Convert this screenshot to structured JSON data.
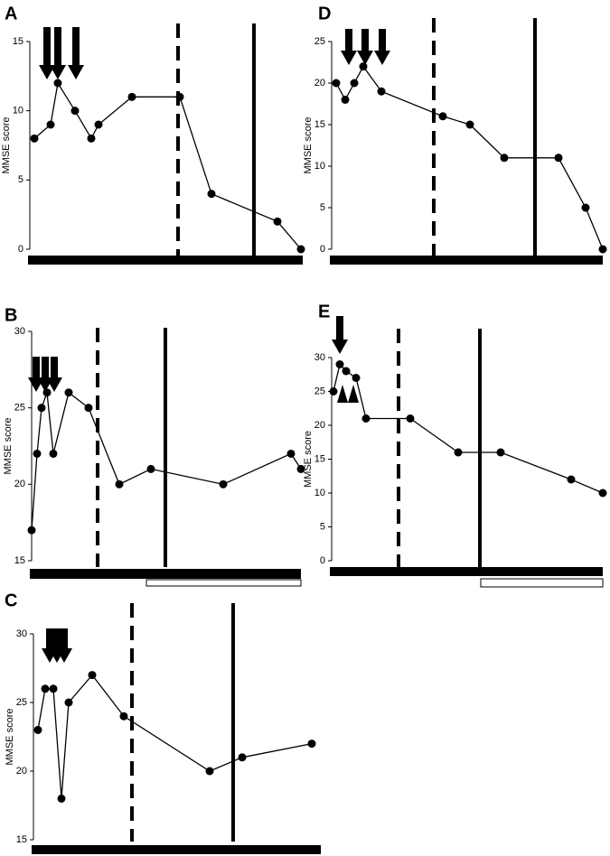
{
  "chart_data": [
    {
      "type": "line",
      "title": "A",
      "ylabel": "MMSE score",
      "color": "#000000",
      "x": [
        5,
        23,
        31,
        50,
        68,
        76,
        113,
        166,
        201,
        274,
        300
      ],
      "values": [
        8,
        9,
        12,
        10,
        8,
        9,
        11,
        11,
        4,
        2,
        0
      ],
      "xlim": [
        0,
        302
      ],
      "ylim": [
        0,
        15
      ],
      "yticks": [
        0,
        5,
        10,
        15
      ],
      "dashed_line_x": 164,
      "solid_line_x": 248,
      "arrows_x": [
        19,
        31,
        51
      ]
    },
    {
      "type": "line",
      "title": "B",
      "ylabel": "MMSE score",
      "color": "#000000",
      "x": [
        0,
        6,
        11,
        17,
        24,
        41,
        63,
        97,
        132,
        212,
        287,
        298
      ],
      "values": [
        17,
        22,
        25,
        26,
        22,
        26,
        25,
        20,
        21,
        20,
        22,
        21
      ],
      "xlim": [
        0,
        298
      ],
      "ylim": [
        15,
        30
      ],
      "yticks": [
        15,
        20,
        25,
        30
      ],
      "dashed_line_x": 73,
      "solid_line_x": 148,
      "arrows_x": [
        5,
        15,
        25
      ],
      "white_bar_x": [
        127,
        298
      ]
    },
    {
      "type": "line",
      "title": "C",
      "ylabel": "MMSE score",
      "color": "#000000",
      "x": [
        5,
        13,
        22,
        31,
        39,
        65,
        100,
        195,
        231,
        308
      ],
      "values": [
        23,
        26,
        26,
        18,
        25,
        27,
        24,
        20,
        21,
        22
      ],
      "xlim": [
        0,
        318
      ],
      "ylim": [
        15,
        30
      ],
      "yticks": [
        15,
        20,
        25,
        30
      ],
      "dashed_line_x": 109,
      "solid_line_x": 221,
      "arrows_x": [
        18,
        26,
        34
      ]
    },
    {
      "type": "line",
      "title": "D",
      "ylabel": "MMSE score",
      "color": "#000000",
      "x": [
        5,
        15,
        25,
        35,
        55,
        123,
        153,
        191,
        251,
        281,
        300
      ],
      "values": [
        20,
        18,
        20,
        22,
        19,
        16,
        15,
        11,
        11,
        5,
        0
      ],
      "xlim": [
        0,
        300
      ],
      "ylim": [
        0,
        25
      ],
      "yticks": [
        0,
        5,
        10,
        15,
        20,
        25
      ],
      "dashed_line_x": 113,
      "solid_line_x": 225,
      "arrows_x": [
        19,
        37,
        56
      ]
    },
    {
      "type": "line",
      "title": "E",
      "ylabel": "MMSE score",
      "color": "#000000",
      "x": [
        2,
        9,
        16,
        27,
        38,
        87,
        140,
        187,
        265,
        300
      ],
      "values": [
        25,
        29,
        28,
        27,
        21,
        21,
        16,
        16,
        12,
        10
      ],
      "xlim": [
        0,
        300
      ],
      "ylim": [
        0,
        30
      ],
      "yticks": [
        0,
        5,
        10,
        15,
        20,
        25,
        30
      ],
      "dashed_line_x": 74,
      "solid_line_x": 164,
      "arrows_x": [
        9
      ],
      "arrowheads_x": [
        12,
        24
      ],
      "white_bar_x": [
        165,
        300
      ]
    }
  ]
}
